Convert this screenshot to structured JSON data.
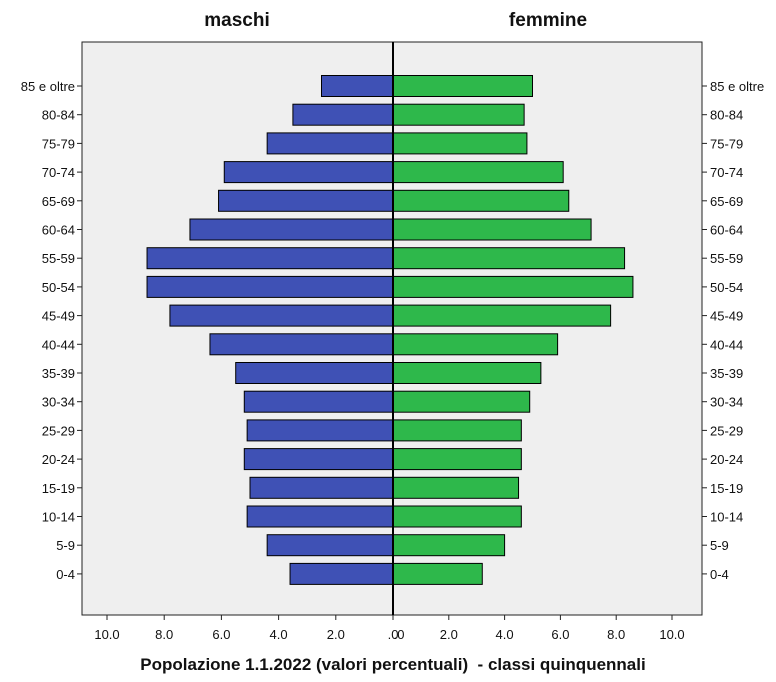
{
  "chart_data": {
    "type": "bar",
    "orientation": "horizontal",
    "layout": "population-pyramid",
    "panels": [
      "maschi",
      "femmine"
    ],
    "xlabel": "Popolazione 1.1.2022 (valori percentuali)  - classi quinquennali",
    "categories": [
      "85 e oltre",
      "80-84",
      "75-79",
      "70-74",
      "65-69",
      "60-64",
      "55-59",
      "50-54",
      "45-49",
      "40-44",
      "35-39",
      "30-34",
      "25-29",
      "20-24",
      "15-19",
      "10-14",
      "5-9",
      "0-4"
    ],
    "series": [
      {
        "name": "maschi",
        "color": "#3F51B5",
        "values": [
          2.5,
          3.5,
          4.4,
          5.9,
          6.1,
          7.1,
          8.6,
          8.6,
          7.8,
          6.4,
          5.5,
          5.2,
          5.1,
          5.2,
          5.0,
          5.1,
          4.4,
          3.6
        ]
      },
      {
        "name": "femmine",
        "color": "#2EB84B",
        "values": [
          5.0,
          4.7,
          4.8,
          6.1,
          6.3,
          7.1,
          8.3,
          8.6,
          7.8,
          5.9,
          5.3,
          4.9,
          4.6,
          4.6,
          4.5,
          4.6,
          4.0,
          3.2
        ]
      }
    ],
    "xticks_left": [
      "10.0",
      "8.0",
      "6.0",
      "4.0",
      "2.0",
      ".0"
    ],
    "xticks_right": [
      ".0",
      "2.0",
      "4.0",
      "6.0",
      "8.0",
      "10.0"
    ],
    "xlim": [
      0,
      10.0
    ],
    "grid": false,
    "legend": "none"
  }
}
